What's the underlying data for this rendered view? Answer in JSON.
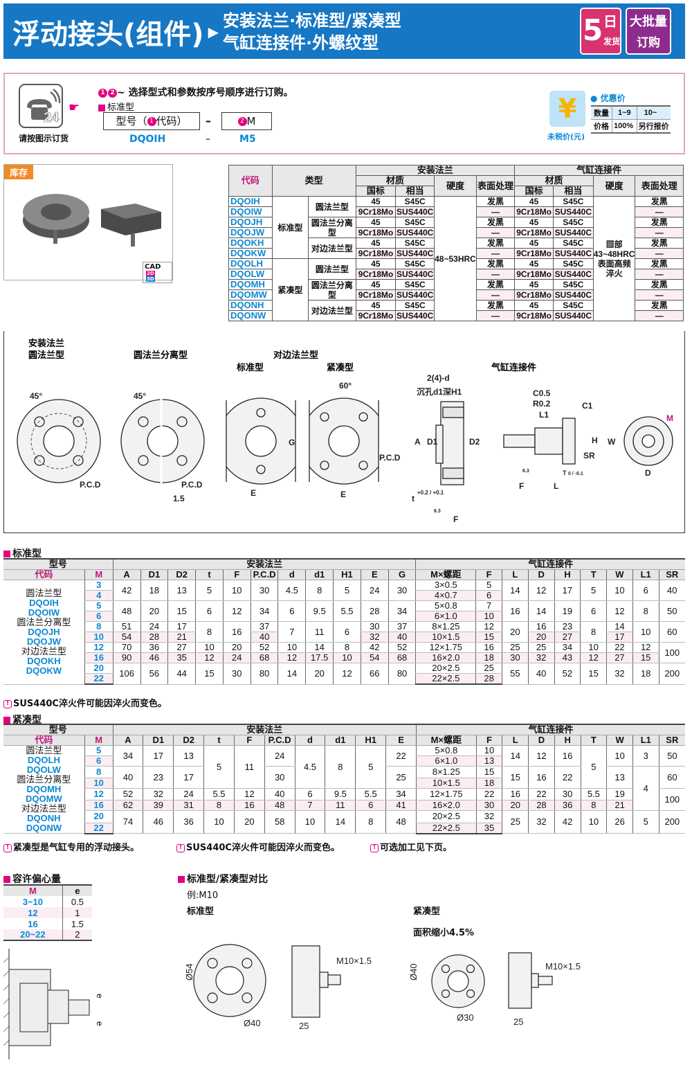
{
  "header": {
    "title": "浮动接头(组件)",
    "arrow": "▶",
    "subtitle_line1": "安装法兰·标准型/紧凑型",
    "subtitle_line2": "气缸连接件·外螺纹型",
    "badge_days": {
      "num": "5",
      "l1": "日",
      "l2": "发货"
    },
    "badge_bulk": {
      "l1": "大批量",
      "l2": "订购"
    },
    "colors": {
      "banner": "#1677c4",
      "badge_days": "#d8336e",
      "badge_bulk": "#8d2c8e"
    }
  },
  "order": {
    "phone_icon": "phone-24-icon",
    "phone_caption": "请按图示订货",
    "instruction_num1": "1",
    "instruction_num2": "2",
    "instruction": "~ 选择型式和参数按序号顺序进行订购。",
    "type_label": "标准型",
    "field1_prefix": "型号（",
    "field1_num": "1",
    "field1_suffix": "代码）",
    "dash": "–",
    "field2_num": "2",
    "field2_label": "M",
    "example_code": "DQOIH",
    "example_m": "M5",
    "price_icon": "yen-icon",
    "price_caption": "未税价(元)",
    "discount_title": "优惠价",
    "price_table": [
      [
        "数量",
        "1~9",
        "10~"
      ],
      [
        "价格",
        "100%",
        "另行报价"
      ]
    ]
  },
  "stock_label": "库存",
  "cad_label": "CAD",
  "cad_2d": "2D",
  "cad_3d": "3D",
  "materials": {
    "headers": {
      "code": "代码",
      "type": "类型",
      "flange": "安装法兰",
      "connector": "气缸连接件",
      "material": "材质",
      "gb": "国标",
      "equiv": "相当",
      "hardness": "硬度",
      "surface": "表面处理"
    },
    "groups": [
      "标准型",
      "紧凑型"
    ],
    "subtypes": [
      "圆法兰型",
      "圆法兰分离型",
      "对边法兰型",
      "圆法兰型",
      "圆法兰分离型",
      "对边法兰型"
    ],
    "flange_hardness": "48~53HRC",
    "connector_hardness": [
      "▨部",
      "43~48HRC",
      "表面高频",
      "淬火"
    ],
    "rows": [
      {
        "code": "DQOIH",
        "gb": "45",
        "eq": "S45C",
        "surf": "发黑",
        "cgb": "45",
        "ceq": "S45C",
        "csurf": "发黑"
      },
      {
        "code": "DQOIW",
        "gb": "9Cr18Mo",
        "eq": "SUS440C",
        "surf": "—",
        "cgb": "9Cr18Mo",
        "ceq": "SUS440C",
        "csurf": "—"
      },
      {
        "code": "DQOJH",
        "gb": "45",
        "eq": "S45C",
        "surf": "发黑",
        "cgb": "45",
        "ceq": "S45C",
        "csurf": "发黑"
      },
      {
        "code": "DQOJW",
        "gb": "9Cr18Mo",
        "eq": "SUS440C",
        "surf": "—",
        "cgb": "9Cr18Mo",
        "ceq": "SUS440C",
        "csurf": "—"
      },
      {
        "code": "DQOKH",
        "gb": "45",
        "eq": "S45C",
        "surf": "发黑",
        "cgb": "45",
        "ceq": "S45C",
        "csurf": "发黑"
      },
      {
        "code": "DQOKW",
        "gb": "9Cr18Mo",
        "eq": "SUS440C",
        "surf": "—",
        "cgb": "9Cr18Mo",
        "ceq": "SUS440C",
        "csurf": "—"
      },
      {
        "code": "DQOLH",
        "gb": "45",
        "eq": "S45C",
        "surf": "发黑",
        "cgb": "45",
        "ceq": "S45C",
        "csurf": "发黑"
      },
      {
        "code": "DQOLW",
        "gb": "9Cr18Mo",
        "eq": "SUS440C",
        "surf": "—",
        "cgb": "9Cr18Mo",
        "ceq": "SUS440C",
        "csurf": "—"
      },
      {
        "code": "DQOMH",
        "gb": "45",
        "eq": "S45C",
        "surf": "发黑",
        "cgb": "45",
        "ceq": "S45C",
        "csurf": "发黑"
      },
      {
        "code": "DQOMW",
        "gb": "9Cr18Mo",
        "eq": "SUS440C",
        "surf": "—",
        "cgb": "9Cr18Mo",
        "ceq": "SUS440C",
        "csurf": "—"
      },
      {
        "code": "DQONH",
        "gb": "45",
        "eq": "S45C",
        "surf": "发黑",
        "cgb": "45",
        "ceq": "S45C",
        "csurf": "发黑"
      },
      {
        "code": "DQONW",
        "gb": "9Cr18Mo",
        "eq": "SUS440C",
        "surf": "—",
        "cgb": "9Cr18Mo",
        "ceq": "SUS440C",
        "csurf": "—"
      }
    ]
  },
  "drawings": {
    "flange": "安装法兰",
    "round": "圆法兰型",
    "split": "圆法兰分离型",
    "flat": "对边法兰型",
    "standard": "标准型",
    "compact": "紧凑型",
    "connector": "气缸连接件",
    "angle45": "45°",
    "angle60": "60°",
    "pcd": "P.C.D",
    "gap": "1.5",
    "G": "G",
    "E": "E",
    "hole": "2(4)-d",
    "counterbore": "沉孔d1深H1",
    "A": "A",
    "D1": "D1",
    "D2": "D2",
    "t": "t",
    "tol": "+0.2 / +0.1",
    "F": "F",
    "rough": "6.3",
    "C05": "C0.5",
    "R02": "R0.2",
    "L1": "L1",
    "C1": "C1",
    "H": "H",
    "SR": "SR",
    "T": "T",
    "Ttol": "0 / -0.1",
    "L": "L",
    "W": "W",
    "D": "D",
    "M": "M"
  },
  "standard_table": {
    "title": "标准型",
    "h_model": "型号",
    "h_code": "代码",
    "h_m": "M",
    "h_flange": "安装法兰",
    "h_connector": "气缸连接件",
    "flange_cols": [
      "A",
      "D1",
      "D2",
      "t",
      "F",
      "P.C.D",
      "d",
      "d1",
      "H1",
      "E",
      "G"
    ],
    "connector_cols": [
      "M×螺距",
      "F",
      "L",
      "D",
      "H",
      "T",
      "W",
      "L1",
      "SR"
    ],
    "labels": [
      [
        "圆法兰型",
        "n"
      ],
      [
        "DQOIH",
        "c"
      ],
      [
        "DQOIW",
        "c"
      ],
      [
        "圆法兰分离型",
        "n"
      ],
      [
        "DQOJH",
        "c"
      ],
      [
        "DQOJW",
        "c"
      ],
      [
        "对边法兰型",
        "n"
      ],
      [
        "DQOKH",
        "c"
      ],
      [
        "DQOKW",
        "c"
      ]
    ],
    "rows": [
      [
        [
          "3"
        ],
        [
          "42",
          2
        ],
        [
          "18",
          2
        ],
        [
          "13",
          2
        ],
        [
          "5",
          2
        ],
        [
          "10",
          2
        ],
        [
          "30",
          2
        ],
        [
          "4.5",
          2
        ],
        [
          "8",
          2
        ],
        [
          "5",
          2
        ],
        [
          "24",
          2
        ],
        [
          "30",
          2
        ],
        [
          "3×0.5"
        ],
        [
          "5"
        ],
        [
          "14",
          2
        ],
        [
          "12",
          2
        ],
        [
          "17",
          2
        ],
        [
          "5",
          2
        ],
        [
          "10",
          2
        ],
        [
          "6",
          2
        ],
        [
          "40",
          2
        ]
      ],
      [
        [
          "4"
        ],
        [
          "4×0.7"
        ],
        [
          "6"
        ]
      ],
      [
        [
          "5"
        ],
        [
          "48",
          2
        ],
        [
          "20",
          2
        ],
        [
          "15",
          2
        ],
        [
          "6",
          2
        ],
        [
          "12",
          2
        ],
        [
          "34",
          2
        ],
        [
          "6",
          2
        ],
        [
          "9.5",
          2
        ],
        [
          "5.5",
          2
        ],
        [
          "28",
          2
        ],
        [
          "34",
          2
        ],
        [
          "5×0.8"
        ],
        [
          "7"
        ],
        [
          "16",
          2
        ],
        [
          "14",
          2
        ],
        [
          "19",
          2
        ],
        [
          "6",
          2
        ],
        [
          "12",
          2
        ],
        [
          "8",
          2
        ],
        [
          "50",
          2
        ]
      ],
      [
        [
          "6"
        ],
        [
          "6×1.0"
        ],
        [
          "10"
        ]
      ],
      [
        [
          "8"
        ],
        [
          "51"
        ],
        [
          "24"
        ],
        [
          "17"
        ],
        [
          "8",
          2
        ],
        [
          "16",
          2
        ],
        [
          "37"
        ],
        [
          "7",
          2
        ],
        [
          "11",
          2
        ],
        [
          "6",
          2
        ],
        [
          "30"
        ],
        [
          "37"
        ],
        [
          "8×1.25"
        ],
        [
          "12"
        ],
        [
          "20",
          2
        ],
        [
          "16"
        ],
        [
          "23"
        ],
        [
          "8",
          2
        ],
        [
          "14"
        ],
        [
          "10",
          2
        ],
        [
          "60",
          2
        ]
      ],
      [
        [
          "10"
        ],
        [
          "54"
        ],
        [
          "28"
        ],
        [
          "21"
        ],
        [
          "40"
        ],
        [
          "32"
        ],
        [
          "40"
        ],
        [
          "10×1.5"
        ],
        [
          "15"
        ],
        [
          "20"
        ],
        [
          "27"
        ],
        [
          "17"
        ]
      ],
      [
        [
          "12"
        ],
        [
          "70"
        ],
        [
          "36"
        ],
        [
          "27"
        ],
        [
          "10"
        ],
        [
          "20"
        ],
        [
          "52"
        ],
        [
          "10"
        ],
        [
          "14"
        ],
        [
          "8"
        ],
        [
          "42"
        ],
        [
          "52"
        ],
        [
          "12×1.75"
        ],
        [
          "16"
        ],
        [
          "25"
        ],
        [
          "25"
        ],
        [
          "34"
        ],
        [
          "10"
        ],
        [
          "22"
        ],
        [
          "12"
        ],
        [
          "100",
          2
        ]
      ],
      [
        [
          "16"
        ],
        [
          "90"
        ],
        [
          "46"
        ],
        [
          "35"
        ],
        [
          "12"
        ],
        [
          "24"
        ],
        [
          "68"
        ],
        [
          "12"
        ],
        [
          "17.5"
        ],
        [
          "10"
        ],
        [
          "54"
        ],
        [
          "68"
        ],
        [
          "16×2.0"
        ],
        [
          "18"
        ],
        [
          "30"
        ],
        [
          "32"
        ],
        [
          "43"
        ],
        [
          "12"
        ],
        [
          "27"
        ],
        [
          "15"
        ]
      ],
      [
        [
          "20"
        ],
        [
          "106",
          2
        ],
        [
          "56",
          2
        ],
        [
          "44",
          2
        ],
        [
          "15",
          2
        ],
        [
          "30",
          2
        ],
        [
          "80",
          2
        ],
        [
          "14",
          2
        ],
        [
          "20",
          2
        ],
        [
          "12",
          2
        ],
        [
          "66",
          2
        ],
        [
          "80",
          2
        ],
        [
          "20×2.5"
        ],
        [
          "25"
        ],
        [
          "55",
          2
        ],
        [
          "40",
          2
        ],
        [
          "52",
          2
        ],
        [
          "15",
          2
        ],
        [
          "32",
          2
        ],
        [
          "18",
          2
        ],
        [
          "200",
          2
        ]
      ],
      [
        [
          "22"
        ],
        [
          "22×2.5"
        ],
        [
          "28"
        ]
      ]
    ],
    "note": "SUS440C淬火件可能因淬火而变色。"
  },
  "compact_table": {
    "title": "紧凑型",
    "h_model": "型号",
    "h_code": "代码",
    "h_m": "M",
    "h_flange": "安装法兰",
    "h_connector": "气缸连接件",
    "flange_cols": [
      "A",
      "D1",
      "D2",
      "t",
      "F",
      "P.C.D",
      "d",
      "d1",
      "H1",
      "E"
    ],
    "connector_cols": [
      "M×螺距",
      "F",
      "L",
      "D",
      "H",
      "T",
      "W",
      "L1",
      "SR"
    ],
    "labels": [
      [
        "圆法兰型",
        "n"
      ],
      [
        "DQOLH",
        "c"
      ],
      [
        "DQOLW",
        "c"
      ],
      [
        "圆法兰分离型",
        "n"
      ],
      [
        "DQOMH",
        "c"
      ],
      [
        "DQOMW",
        "c"
      ],
      [
        "对边法兰型",
        "n"
      ],
      [
        "DQONH",
        "c"
      ],
      [
        "DQONW",
        "c"
      ]
    ],
    "rows": [
      [
        [
          "5"
        ],
        [
          "34",
          2
        ],
        [
          "17",
          2
        ],
        [
          "13",
          2
        ],
        [
          "5",
          4
        ],
        [
          "11",
          4
        ],
        [
          "24",
          2
        ],
        [
          "4.5",
          4
        ],
        [
          "8",
          4
        ],
        [
          "5",
          4
        ],
        [
          "22",
          2
        ],
        [
          "5×0.8"
        ],
        [
          "10"
        ],
        [
          "14",
          2
        ],
        [
          "12",
          2
        ],
        [
          "16",
          2
        ],
        [
          "5",
          4
        ],
        [
          "10",
          2
        ],
        [
          "3",
          2
        ],
        [
          "50",
          2
        ]
      ],
      [
        [
          "6"
        ],
        [
          "6×1.0"
        ],
        [
          "13"
        ]
      ],
      [
        [
          "8"
        ],
        [
          "40",
          2
        ],
        [
          "23",
          2
        ],
        [
          "17",
          2
        ],
        [
          "30",
          2
        ],
        [
          "25",
          2
        ],
        [
          "8×1.25"
        ],
        [
          "15"
        ],
        [
          "15",
          2
        ],
        [
          "16",
          2
        ],
        [
          "22",
          2
        ],
        [
          "13",
          2
        ],
        [
          "4",
          4
        ],
        [
          "60",
          2
        ]
      ],
      [
        [
          "10"
        ],
        [
          "10×1.5"
        ],
        [
          "18"
        ]
      ],
      [
        [
          "12"
        ],
        [
          "52"
        ],
        [
          "32"
        ],
        [
          "24"
        ],
        [
          "5.5"
        ],
        [
          "12"
        ],
        [
          "40"
        ],
        [
          "6"
        ],
        [
          "9.5"
        ],
        [
          "5.5"
        ],
        [
          "34"
        ],
        [
          "12×1.75"
        ],
        [
          "22"
        ],
        [
          "16"
        ],
        [
          "22"
        ],
        [
          "30"
        ],
        [
          "5.5"
        ],
        [
          "19"
        ],
        [
          "100",
          2
        ]
      ],
      [
        [
          "16"
        ],
        [
          "62"
        ],
        [
          "39"
        ],
        [
          "31"
        ],
        [
          "8"
        ],
        [
          "16"
        ],
        [
          "48"
        ],
        [
          "7"
        ],
        [
          "11"
        ],
        [
          "6"
        ],
        [
          "41"
        ],
        [
          "16×2.0"
        ],
        [
          "30"
        ],
        [
          "20"
        ],
        [
          "28"
        ],
        [
          "36"
        ],
        [
          "8"
        ],
        [
          "21"
        ]
      ],
      [
        [
          "20"
        ],
        [
          "74",
          2
        ],
        [
          "46",
          2
        ],
        [
          "36",
          2
        ],
        [
          "10",
          2
        ],
        [
          "20",
          2
        ],
        [
          "58",
          2
        ],
        [
          "10",
          2
        ],
        [
          "14",
          2
        ],
        [
          "8",
          2
        ],
        [
          "48",
          2
        ],
        [
          "20×2.5"
        ],
        [
          "32"
        ],
        [
          "25",
          2
        ],
        [
          "32",
          2
        ],
        [
          "42",
          2
        ],
        [
          "10",
          2
        ],
        [
          "26",
          2
        ],
        [
          "5",
          2
        ],
        [
          "200",
          2
        ]
      ],
      [
        [
          "22"
        ],
        [
          "22×2.5"
        ],
        [
          "35"
        ]
      ]
    ],
    "notes": [
      "紧凑型是气缸专用的浮动接头。",
      "SUS440C淬火件可能因淬火而变色。",
      "可选加工见下页。"
    ]
  },
  "eccentricity": {
    "title": "容许偏心量",
    "headers": [
      "M",
      "e"
    ],
    "rows": [
      [
        "3~10",
        "0.5"
      ],
      [
        "12",
        "1"
      ],
      [
        "16",
        "1.5"
      ],
      [
        "20~22",
        "2"
      ]
    ],
    "e_label": "e"
  },
  "comparison": {
    "title": "标准型/紧凑型对比",
    "example": "例:M10",
    "standard": "标准型",
    "compact": "紧凑型",
    "reduction": "面积缩小4.5%",
    "std_outer": "Ø54",
    "std_pcd": "Ø40",
    "std_thread": "M10×1.5",
    "std_len": "25",
    "cmp_outer": "Ø40",
    "cmp_pcd": "Ø30",
    "cmp_thread": "M10×1.5",
    "cmp_len": "25"
  }
}
